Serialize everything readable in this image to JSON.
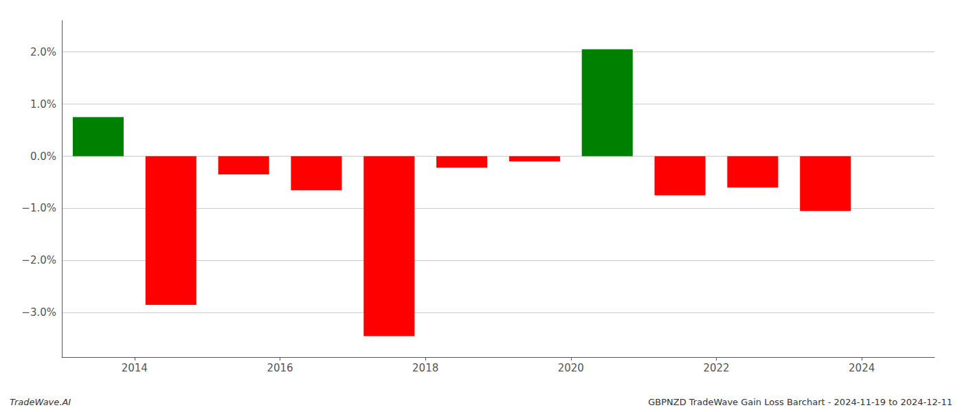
{
  "chart_data": {
    "type": "bar",
    "x": [
      2013.5,
      2014.5,
      2015.5,
      2016.5,
      2017.5,
      2018.5,
      2019.5,
      2020.5,
      2021.5,
      2022.5,
      2023.5
    ],
    "values": [
      0.75,
      -2.85,
      -0.35,
      -0.65,
      -3.45,
      -0.22,
      -0.1,
      2.05,
      -0.75,
      -0.6,
      -1.05
    ],
    "colors": [
      "#008000",
      "#ff0000",
      "#ff0000",
      "#ff0000",
      "#ff0000",
      "#ff0000",
      "#ff0000",
      "#008000",
      "#ff0000",
      "#ff0000",
      "#ff0000"
    ],
    "xlim": [
      2013.0,
      2025.0
    ],
    "xticks": [
      2014,
      2016,
      2018,
      2020,
      2022,
      2024
    ],
    "ylim": [
      -3.85,
      2.6
    ],
    "yticks": [
      {
        "value": -3.0,
        "label": "−3.0%"
      },
      {
        "value": -2.0,
        "label": "−2.0%"
      },
      {
        "value": -1.0,
        "label": "−1.0%"
      },
      {
        "value": 0.0,
        "label": "0.0%"
      },
      {
        "value": 1.0,
        "label": "1.0%"
      },
      {
        "value": 2.0,
        "label": "2.0%"
      }
    ],
    "grid": true,
    "annotations": [
      "TradeWave.AI",
      "GBPNZD TradeWave Gain Loss Barchart - 2024-11-19 to 2024-12-11"
    ]
  }
}
